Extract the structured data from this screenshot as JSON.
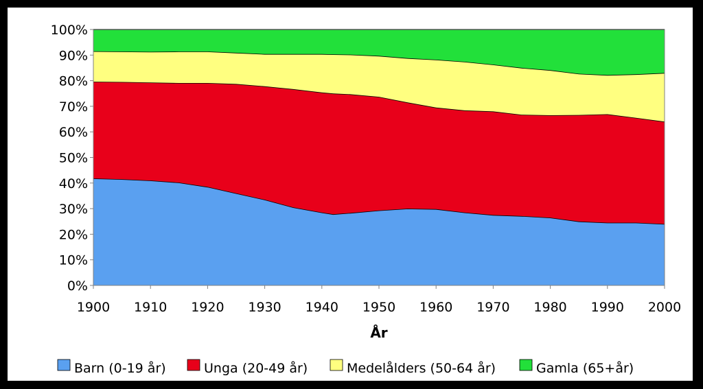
{
  "chart_data": {
    "type": "area",
    "stacked": "percent",
    "xlabel": "År",
    "ylabel": "",
    "xlim": [
      1900,
      2000
    ],
    "ylim": [
      0,
      100
    ],
    "x_ticks": [
      "1900",
      "1910",
      "1920",
      "1930",
      "1940",
      "1950",
      "1960",
      "1970",
      "1980",
      "1990",
      "2000"
    ],
    "y_ticks": [
      "0%",
      "10%",
      "20%",
      "30%",
      "40%",
      "50%",
      "60%",
      "70%",
      "80%",
      "90%",
      "100%"
    ],
    "x": [
      1900,
      1905,
      1910,
      1915,
      1920,
      1925,
      1930,
      1935,
      1940,
      1942,
      1945,
      1950,
      1955,
      1960,
      1965,
      1970,
      1975,
      1980,
      1985,
      1990,
      1995,
      2000
    ],
    "series": [
      {
        "name": "Barn (0-19 år)",
        "color": "#5aa0f0",
        "values": [
          41.8,
          41.5,
          41.0,
          40.2,
          38.5,
          36.0,
          33.5,
          30.5,
          28.5,
          27.8,
          28.3,
          29.3,
          30.0,
          29.8,
          28.5,
          27.5,
          27.1,
          26.5,
          25.0,
          24.5,
          24.5,
          24.0
        ]
      },
      {
        "name": "Unga (20-49 år)",
        "color": "#e8001a",
        "values": [
          37.8,
          38.0,
          38.3,
          38.9,
          40.6,
          42.7,
          44.3,
          46.2,
          46.9,
          47.2,
          46.4,
          44.4,
          41.5,
          39.7,
          39.9,
          40.5,
          39.6,
          40.0,
          41.6,
          42.4,
          41.0,
          40.0
        ]
      },
      {
        "name": "Medelålders (50-64 år)",
        "color": "#ffff80",
        "values": [
          11.9,
          11.9,
          12.0,
          12.3,
          12.3,
          12.2,
          12.6,
          13.7,
          15.0,
          15.3,
          15.5,
          16.0,
          17.3,
          18.7,
          19.0,
          18.3,
          18.3,
          17.6,
          16.1,
          15.3,
          17.0,
          19.0
        ]
      },
      {
        "name": "Gamla (65+år)",
        "color": "#22e03a",
        "values": [
          8.5,
          8.6,
          8.7,
          8.6,
          8.6,
          9.1,
          9.6,
          9.6,
          9.6,
          9.7,
          9.8,
          10.3,
          11.2,
          11.8,
          12.6,
          13.7,
          15.0,
          15.9,
          17.3,
          17.8,
          17.5,
          17.0
        ]
      }
    ],
    "legend_position": "bottom",
    "grid": false
  }
}
